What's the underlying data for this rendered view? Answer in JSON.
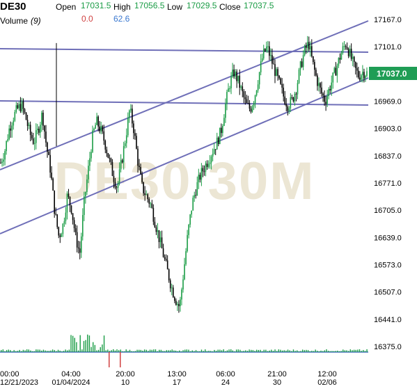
{
  "header": {
    "symbol": "DE30",
    "open_label": "Open",
    "open_value": "17031.5",
    "high_label": "High",
    "high_value": "17056.5",
    "low_label": "Low",
    "low_value": "17029.5",
    "close_label": "Close",
    "close_value": "17037.5",
    "volume_label": "Volume",
    "volume_period": "(9)",
    "volume_value_1": "0.0",
    "volume_value_2": "62.6"
  },
  "watermark": "DE30 30M",
  "price_badge": "17037.0",
  "colors": {
    "up": "#1a9c45",
    "down": "#000000",
    "trendline": "#6f6fb8",
    "axis_text": "#000000",
    "header_green": "#1a9c45",
    "header_red": "#d04040",
    "header_blue": "#3a78d0",
    "badge_bg": "#1f9d55",
    "volume_line": "#6a8ccc",
    "watermark": "#ece6d4"
  },
  "chart_data": {
    "type": "candlestick",
    "symbol": "DE30",
    "timeframe": "30M",
    "y_ticks": [
      "17167.0",
      "17101.0",
      "17035.0",
      "16969.0",
      "16903.0",
      "16837.0",
      "16771.0",
      "16705.0",
      "16639.0",
      "16573.0",
      "16507.0",
      "16441.0",
      "16375.0"
    ],
    "ylim": [
      16350,
      17200
    ],
    "x_ticks": [
      {
        "top": "00:00",
        "bottom": "12/21/2023"
      },
      {
        "top": "04:00",
        "bottom": "01/04/2024"
      },
      {
        "top": "20:00",
        "bottom": "10"
      },
      {
        "top": "13:00",
        "bottom": "17"
      },
      {
        "top": "06:00",
        "bottom": "24"
      },
      {
        "top": "21:00",
        "bottom": "30"
      },
      {
        "top": "12:00",
        "bottom": "02/06"
      }
    ],
    "price_series": [
      16820,
      16850,
      16900,
      16930,
      16950,
      16960,
      16930,
      16890,
      16870,
      16900,
      16940,
      16860,
      16800,
      16700,
      16640,
      16670,
      16740,
      16710,
      16640,
      16600,
      16720,
      16800,
      16880,
      16920,
      16900,
      16870,
      16830,
      16790,
      16760,
      16820,
      16880,
      16950,
      16900,
      16820,
      16760,
      16740,
      16720,
      16680,
      16640,
      16600,
      16560,
      16520,
      16490,
      16470,
      16560,
      16650,
      16720,
      16760,
      16790,
      16810,
      16830,
      16850,
      16870,
      16900,
      16960,
      17010,
      17040,
      17020,
      16990,
      16960,
      16950,
      16980,
      17030,
      17080,
      17100,
      17070,
      17040,
      17010,
      16980,
      16960,
      16970,
      17000,
      17050,
      17090,
      17110,
      17060,
      17020,
      16990,
      16970,
      17000,
      17030,
      17060,
      17090,
      17110,
      17080,
      17050,
      17030,
      17040,
      17037
    ]
  }
}
